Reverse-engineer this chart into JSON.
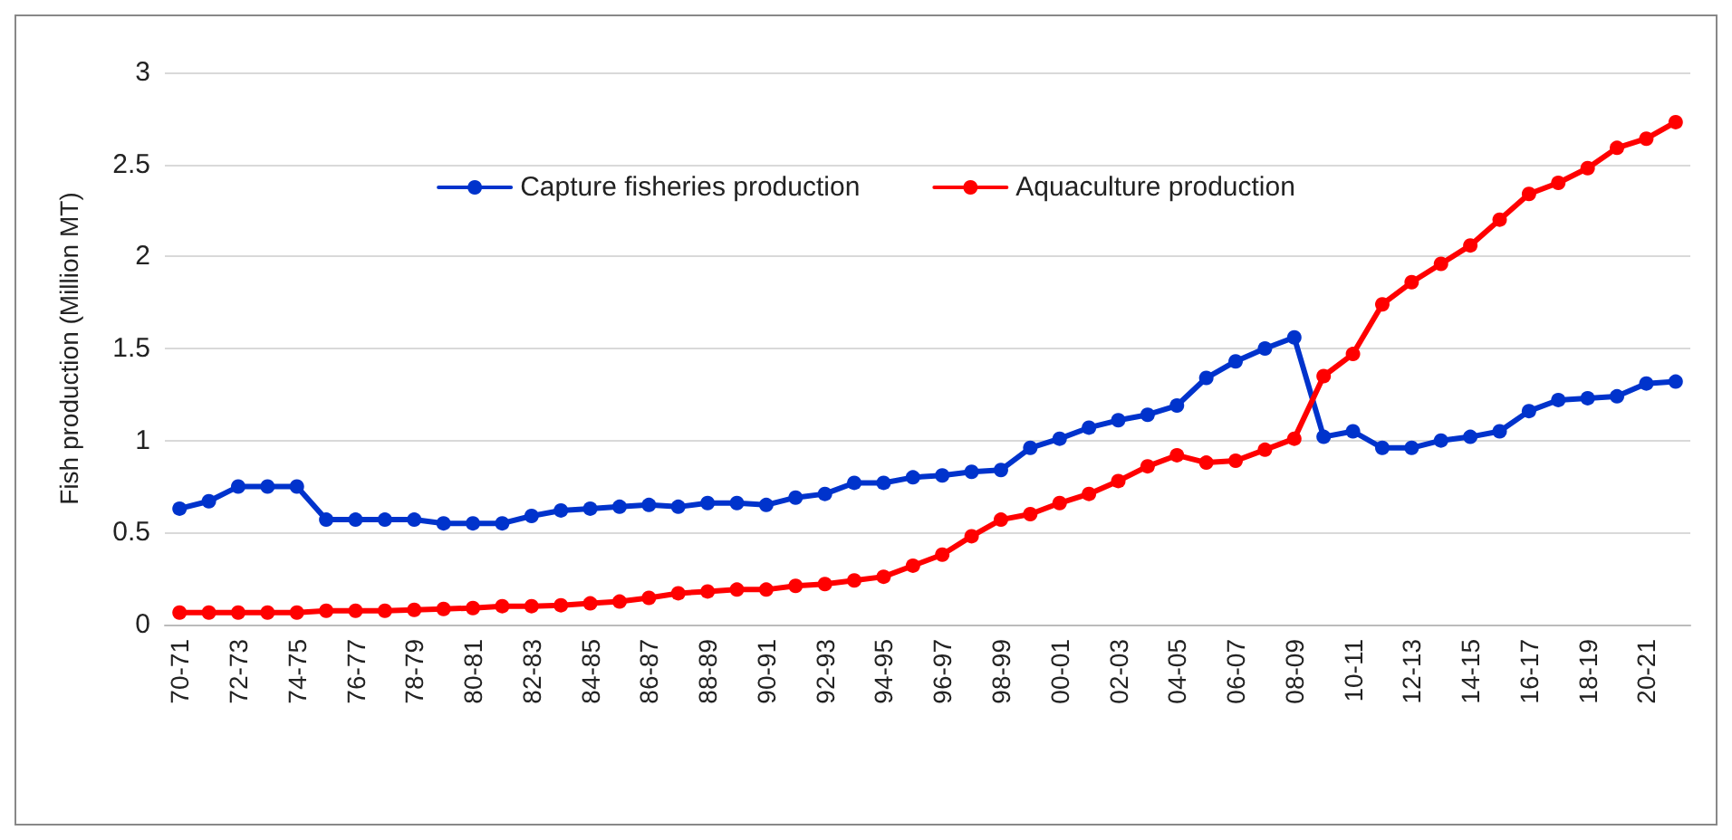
{
  "chart_data": {
    "type": "line",
    "ylabel": "Fish production (Million MT)",
    "categories": [
      "70-71",
      null,
      "72-73",
      null,
      "74-75",
      null,
      "76-77",
      null,
      "78-79",
      null,
      "80-81",
      null,
      "82-83",
      null,
      "84-85",
      null,
      "86-87",
      null,
      "88-89",
      null,
      "90-91",
      null,
      "92-93",
      null,
      "94-95",
      null,
      "96-97",
      null,
      "98-99",
      null,
      "00-01",
      null,
      "02-03",
      null,
      "04-05",
      null,
      "06-07",
      null,
      "08-09",
      null,
      "10-11",
      null,
      "12-13",
      null,
      "14-15",
      null,
      "16-17",
      null,
      "18-19",
      null,
      "20-21",
      null
    ],
    "series": [
      {
        "name": "Capture fisheries production",
        "color": "#0033cc",
        "values": [
          0.63,
          0.67,
          0.75,
          0.75,
          0.75,
          0.57,
          0.57,
          0.57,
          0.57,
          0.55,
          0.55,
          0.55,
          0.59,
          0.62,
          0.63,
          0.64,
          0.65,
          0.64,
          0.66,
          0.66,
          0.65,
          0.69,
          0.71,
          0.77,
          0.77,
          0.8,
          0.81,
          0.83,
          0.84,
          0.96,
          1.01,
          1.07,
          1.11,
          1.14,
          1.19,
          1.34,
          1.43,
          1.5,
          1.56,
          1.02,
          1.05,
          0.96,
          0.96,
          1.0,
          1.02,
          1.05,
          1.16,
          1.22,
          1.23,
          1.24,
          1.31,
          1.32
        ]
      },
      {
        "name": "Aquaculture production",
        "color": "#ff0000",
        "values": [
          0.065,
          0.065,
          0.065,
          0.065,
          0.065,
          0.075,
          0.075,
          0.075,
          0.08,
          0.085,
          0.09,
          0.1,
          0.1,
          0.105,
          0.115,
          0.125,
          0.145,
          0.17,
          0.18,
          0.19,
          0.19,
          0.21,
          0.22,
          0.24,
          0.26,
          0.32,
          0.38,
          0.48,
          0.57,
          0.6,
          0.66,
          0.71,
          0.78,
          0.86,
          0.92,
          0.88,
          0.89,
          0.95,
          1.01,
          1.35,
          1.47,
          1.74,
          1.86,
          1.96,
          2.06,
          2.2,
          2.34,
          2.4,
          2.48,
          2.59,
          2.64,
          2.73
        ]
      }
    ],
    "ylim": [
      0,
      3
    ],
    "yticks": [
      0,
      0.5,
      1,
      1.5,
      2,
      2.5,
      3
    ],
    "grid": "y",
    "legend": "top",
    "marker": "circle",
    "line_style": "solid"
  }
}
